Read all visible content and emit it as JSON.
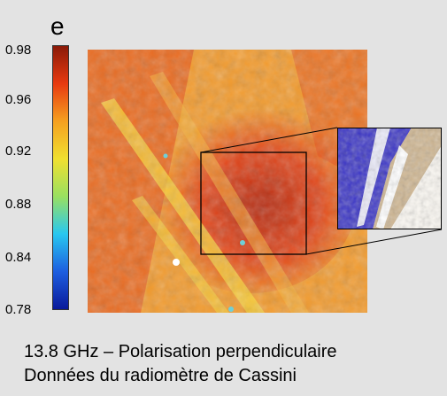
{
  "chart_data": {
    "type": "heatmap",
    "colorbar": {
      "label": "e",
      "ticks": [
        "0.98",
        "0.96",
        "0.92",
        "0.88",
        "0.84",
        "0.78"
      ],
      "range": [
        0.78,
        0.98
      ],
      "colors": [
        "#0a1a9a",
        "#1d5ee0",
        "#28c8f0",
        "#9ae060",
        "#f0e030",
        "#f5a020",
        "#e83a10",
        "#8a1a08"
      ]
    },
    "map_colors": {
      "base": "#f29b2e",
      "mid": "#f5b23a",
      "high": "#e2461a",
      "peak": "#b62a10",
      "streak": "#f7d43c",
      "cyan": "#6fd0d8",
      "inset_blue": "#3a34c6",
      "inset_tan": "#c0a070"
    },
    "caption_line1": "13.8 GHz – Polarisation perpendiculaire",
    "caption_line2": "Données du radiomètre de Cassini"
  }
}
